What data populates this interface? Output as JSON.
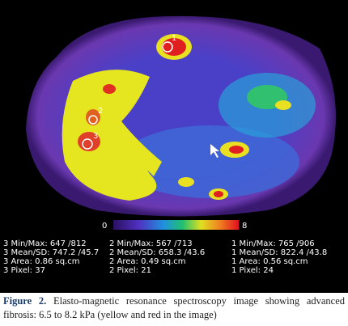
{
  "figure": {
    "roi_labels": [
      "1",
      "2",
      "3"
    ],
    "colorbar": {
      "min_label": "0",
      "max_label": "8"
    },
    "measurements": [
      [
        "3 Min/Max: 647 /812",
        "3 Mean/SD: 747.2 /45.7",
        "3 Area: 0.86 sq.cm",
        "3 Pixel: 37"
      ],
      [
        "2 Min/Max: 567 /713",
        "2 Mean/SD: 658.3 /43.6",
        "2 Area: 0.49 sq.cm",
        "2 Pixel: 21"
      ],
      [
        "1 Min/Max: 765 /906",
        "1 Mean/SD: 822.4 /43.8",
        "1 Area: 0.56 sq.cm",
        "1 Pixel: 24"
      ]
    ],
    "caption": {
      "label": "Figure 2.",
      "text": "Elasto-magnetic resonance spectroscopy image showing advanced fibrosis: 6.5 to 8.2 kPa (yellow and red in the image)"
    }
  }
}
